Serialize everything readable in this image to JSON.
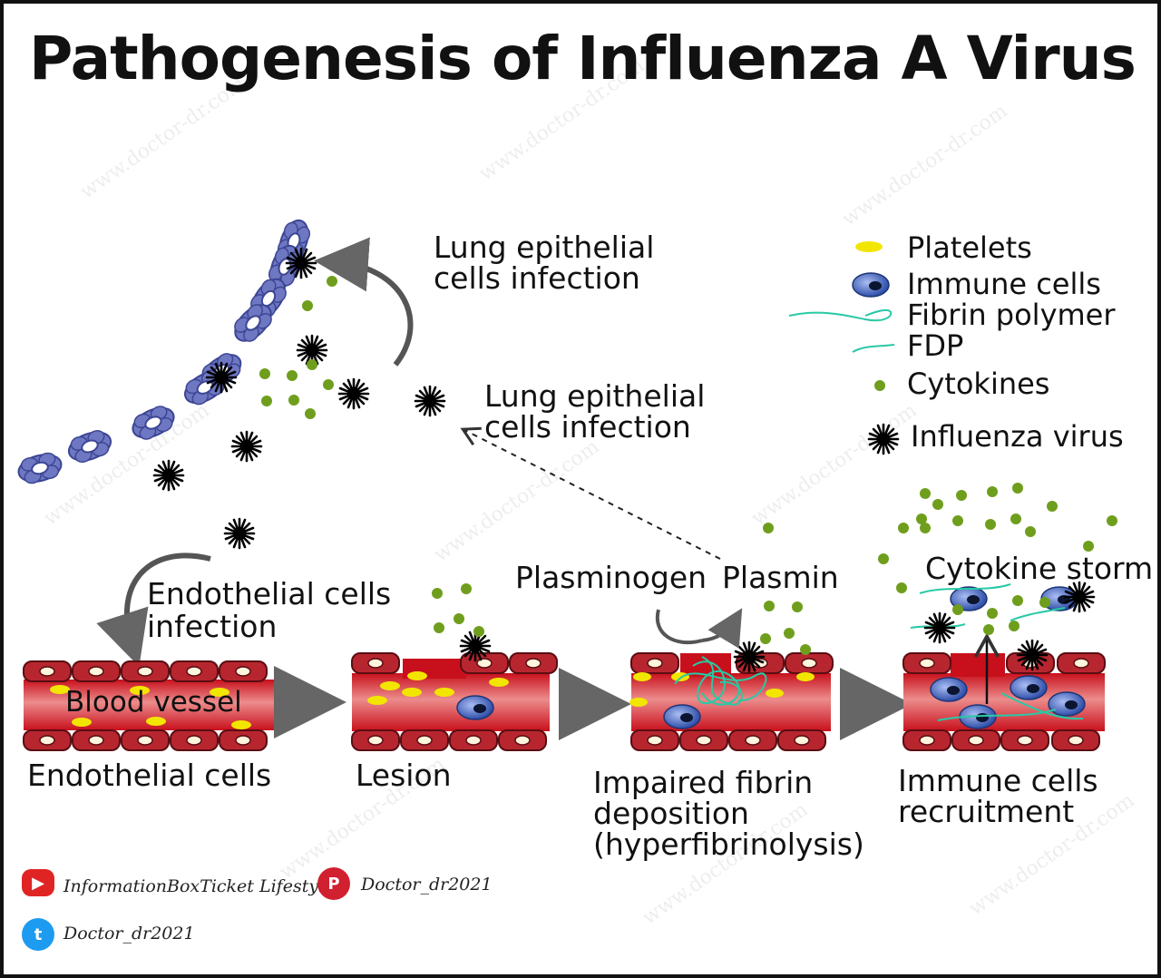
{
  "title": "Pathogenesis of Influenza A Virus",
  "labels": {
    "lung_infection_top_1": "Lung epithelial",
    "lung_infection_top_2": "cells infection",
    "lung_infection_mid_1": "Lung epithelial",
    "lung_infection_mid_2": "cells infection",
    "endothelial_infection_1": "Endothelial cells",
    "endothelial_infection_2": "infection",
    "blood_vessel": "Blood vessel",
    "endothelial_cells": "Endothelial cells",
    "lesion": "Lesion",
    "plasminogen": "Plasminogen",
    "plasmin": "Plasmin",
    "cytokine_storm": "Cytokine storm",
    "impaired_1": "Impaired fibrin",
    "impaired_2": "deposition",
    "impaired_3": "(hyperfibrinolysis)",
    "immune_recruit_1": "Immune cells",
    "immune_recruit_2": "recruitment"
  },
  "legend": [
    {
      "label": "Platelets",
      "icon": "platelet-icon",
      "color": "#f2e600"
    },
    {
      "label": "Immune cells",
      "icon": "immune-cell-icon",
      "color": "#3f63c8"
    },
    {
      "label": "Fibrin polymer",
      "icon": "fibrin-polymer-icon",
      "color": "#28c9a6"
    },
    {
      "label": "FDP",
      "icon": "fdp-icon",
      "color": "#28c9a6"
    },
    {
      "label": "Cytokines",
      "icon": "cytokine-icon",
      "color": "#6f9e1d"
    },
    {
      "label": "Influenza virus",
      "icon": "influenza-virus-icon",
      "color": "#000000"
    }
  ],
  "social": {
    "youtube": "InformationBoxTicket Lifestyles",
    "pinterest": "Doctor_dr2021",
    "twitter": "Doctor_dr2021"
  },
  "watermark": "www.doctor-dr.com",
  "colors": {
    "vessel_wall": "#b7262f",
    "vessel_blood": "#d0222b",
    "platelet": "#f2e600",
    "cytokine": "#6f9e1d",
    "lung_cell": "#6e78c2",
    "fibrin": "#28c9a6",
    "immune": "#3f63c8"
  }
}
